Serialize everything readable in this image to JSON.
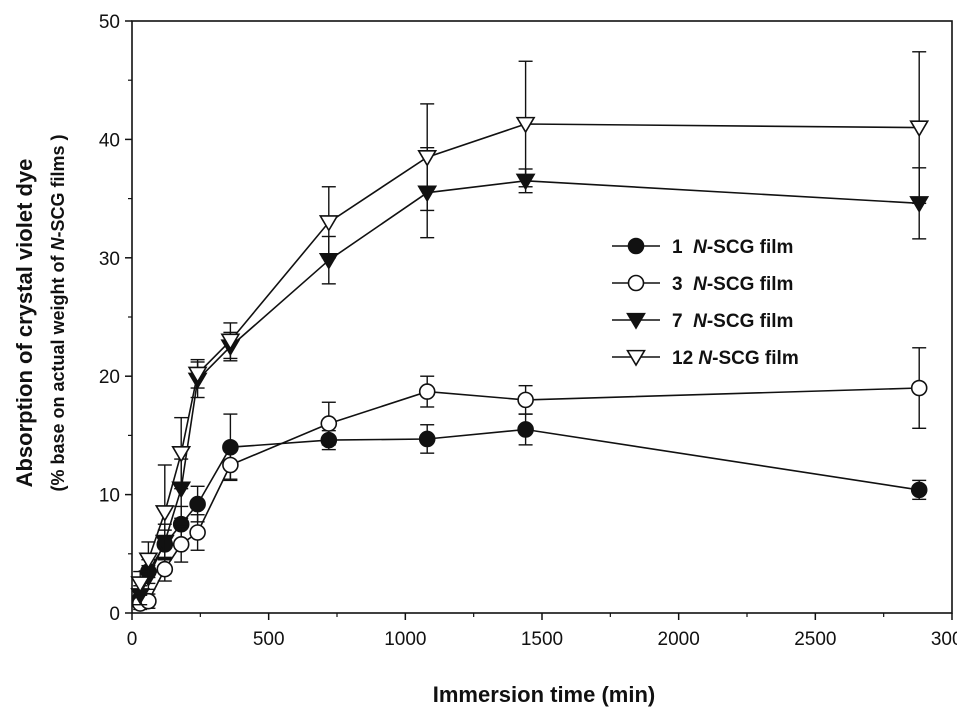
{
  "chart_data": {
    "type": "line",
    "xlabel": "Immersion time (min)",
    "ylabel": {
      "line1": "Absorption of crystal violet dye",
      "line2_parts": [
        "(% base on actual weight of ",
        "N",
        "-SCG films )"
      ]
    },
    "xlim": [
      0,
      3000
    ],
    "ylim": [
      0,
      50
    ],
    "x_ticks": [
      0,
      500,
      1000,
      1500,
      2000,
      2500,
      3000
    ],
    "y_ticks": [
      0,
      10,
      20,
      30,
      40,
      50
    ],
    "grid": false,
    "legend_position": "right",
    "series": [
      {
        "name": "1 N-SCG film",
        "legend_parts": [
          "1  ",
          "N",
          "-SCG film"
        ],
        "marker": "filled-circle",
        "points": [
          {
            "x": 30,
            "y": 1.2,
            "err": 0.6
          },
          {
            "x": 60,
            "y": 3.5,
            "err": 1.0
          },
          {
            "x": 120,
            "y": 5.8,
            "err": 1.2
          },
          {
            "x": 180,
            "y": 7.5,
            "err": 1.5
          },
          {
            "x": 240,
            "y": 9.2,
            "err": 1.5
          },
          {
            "x": 360,
            "y": 14.0,
            "err": 2.8
          },
          {
            "x": 720,
            "y": 14.6,
            "err": 0.8
          },
          {
            "x": 1080,
            "y": 14.7,
            "err": 1.2
          },
          {
            "x": 1440,
            "y": 15.5,
            "err": 1.3
          },
          {
            "x": 2880,
            "y": 10.4,
            "err": 0.8
          }
        ]
      },
      {
        "name": "3 N-SCG film",
        "legend_parts": [
          "3  ",
          "N",
          "-SCG film"
        ],
        "marker": "open-circle",
        "points": [
          {
            "x": 30,
            "y": 0.8,
            "err": 0.5
          },
          {
            "x": 60,
            "y": 1.0,
            "err": 0.6
          },
          {
            "x": 120,
            "y": 3.7,
            "err": 1.0
          },
          {
            "x": 180,
            "y": 5.8,
            "err": 1.5
          },
          {
            "x": 240,
            "y": 6.8,
            "err": 1.5
          },
          {
            "x": 360,
            "y": 12.5,
            "err": 1.2
          },
          {
            "x": 720,
            "y": 16.0,
            "err": 1.8
          },
          {
            "x": 1080,
            "y": 18.7,
            "err": 1.3
          },
          {
            "x": 1440,
            "y": 18.0,
            "err": 1.2
          },
          {
            "x": 2880,
            "y": 19.0,
            "err": 3.4
          }
        ]
      },
      {
        "name": "7 N-SCG film",
        "legend_parts": [
          "7  ",
          "N",
          "-SCG film"
        ],
        "marker": "filled-triangle-down",
        "points": [
          {
            "x": 30,
            "y": 1.5,
            "err": 0.8
          },
          {
            "x": 60,
            "y": 3.0,
            "err": 1.0
          },
          {
            "x": 120,
            "y": 6.0,
            "err": 1.5
          },
          {
            "x": 180,
            "y": 10.5,
            "err": 2.5
          },
          {
            "x": 240,
            "y": 19.7,
            "err": 1.5
          },
          {
            "x": 360,
            "y": 22.5,
            "err": 1.2
          },
          {
            "x": 720,
            "y": 29.8,
            "err": 2.0
          },
          {
            "x": 1080,
            "y": 35.5,
            "err": 3.8
          },
          {
            "x": 1440,
            "y": 36.5,
            "err": 1.0
          },
          {
            "x": 2880,
            "y": 34.6,
            "err": 3.0
          }
        ]
      },
      {
        "name": "12 N-SCG film",
        "legend_parts": [
          "12 ",
          "N",
          "-SCG film"
        ],
        "marker": "open-triangle-down",
        "points": [
          {
            "x": 30,
            "y": 2.5,
            "err": 1.0
          },
          {
            "x": 60,
            "y": 4.5,
            "err": 1.5
          },
          {
            "x": 120,
            "y": 8.5,
            "err": 4.0
          },
          {
            "x": 180,
            "y": 13.5,
            "err": 3.0
          },
          {
            "x": 240,
            "y": 20.2,
            "err": 1.2
          },
          {
            "x": 360,
            "y": 23.0,
            "err": 1.5
          },
          {
            "x": 720,
            "y": 33.0,
            "err": 3.0
          },
          {
            "x": 1080,
            "y": 38.5,
            "err": 4.5
          },
          {
            "x": 1440,
            "y": 41.3,
            "err": 5.3
          },
          {
            "x": 2880,
            "y": 41.0,
            "err": 6.4
          }
        ]
      }
    ]
  }
}
